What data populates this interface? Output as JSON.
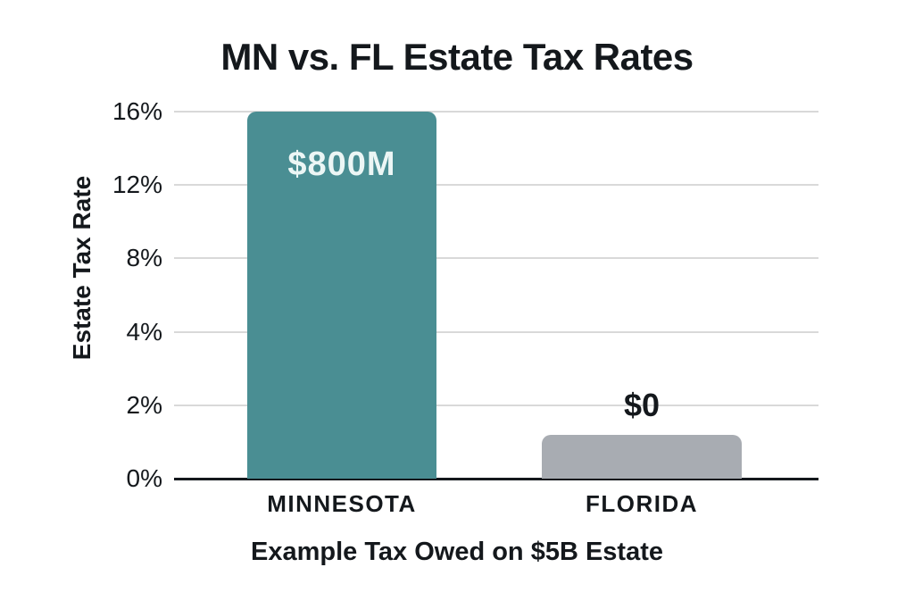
{
  "colors": {
    "mn_bar": "#4a8e93",
    "fl_bar": "#a8acb2",
    "gridline": "#d9d9d9",
    "axis_line": "#14181c",
    "text": "#14181c",
    "bar_label_light": "#ecf6f5"
  },
  "chart_data": {
    "type": "bar",
    "title": "MN vs. FL Estate Tax Rates",
    "ylabel": "Estate Tax Rate",
    "xlabel": "Example Tax Owed on $5B Estate",
    "categories": [
      "MINNESOTA",
      "FLORIDA"
    ],
    "values": [
      16,
      1.2
    ],
    "bar_labels": [
      "$800M",
      "$0"
    ],
    "y_ticks": [
      "16%",
      "12%",
      "8%",
      "4%",
      "2%",
      "0%"
    ],
    "y_tick_values": [
      16,
      12,
      8,
      4,
      2,
      0
    ],
    "ylim_note": "y ticks are equally spaced on screen but values are non-linear (0, 2, 4, 8, 12, 16)",
    "grid": true,
    "legend": false,
    "bars": [
      {
        "category": "MINNESOTA",
        "value_pct": 16,
        "label": "$800M",
        "label_position": "inside",
        "color_key": "mn_bar"
      },
      {
        "category": "FLORIDA",
        "value_pct": 1.2,
        "label": "$0",
        "label_position": "above",
        "color_key": "fl_bar"
      }
    ]
  }
}
